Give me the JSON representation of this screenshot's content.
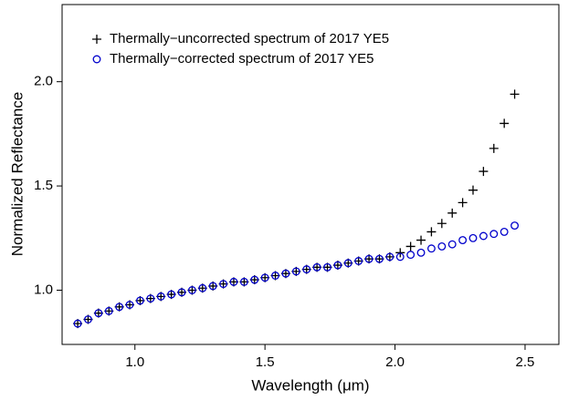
{
  "chart_data": {
    "type": "scatter",
    "xlabel": "Wavelength (μm)",
    "ylabel": "Normalized Reflectance",
    "xlim": [
      0.72,
      2.63
    ],
    "ylim": [
      0.74,
      2.37
    ],
    "xticks": [
      {
        "value": 1,
        "label": "1.0"
      },
      1.5,
      {
        "value": 2,
        "label": "2.0"
      },
      2.5
    ],
    "yticks": [
      {
        "value": 1,
        "label": "1.0"
      },
      1.5,
      {
        "value": 2,
        "label": "2.0"
      }
    ],
    "legend": "upper left",
    "x": [
      0.78,
      0.82,
      0.86,
      0.9,
      0.94,
      0.98,
      1.02,
      1.06,
      1.1,
      1.14,
      1.18,
      1.22,
      1.26,
      1.3,
      1.34,
      1.38,
      1.42,
      1.46,
      1.5,
      1.54,
      1.58,
      1.62,
      1.66,
      1.7,
      1.74,
      1.78,
      1.82,
      1.86,
      1.9,
      1.94,
      1.98,
      2.02,
      2.06,
      2.1,
      2.14,
      2.18,
      2.22,
      2.26,
      2.3,
      2.34,
      2.38,
      2.42,
      2.46
    ],
    "series": [
      {
        "name": "Thermally−uncorrected spectrum of 2017 YE5",
        "color": "#000000",
        "marker": "plus",
        "values": [
          0.84,
          0.86,
          0.89,
          0.9,
          0.92,
          0.93,
          0.95,
          0.96,
          0.97,
          0.98,
          0.99,
          1.0,
          1.01,
          1.02,
          1.03,
          1.04,
          1.04,
          1.05,
          1.06,
          1.07,
          1.08,
          1.09,
          1.1,
          1.11,
          1.11,
          1.12,
          1.13,
          1.14,
          1.15,
          1.15,
          1.16,
          1.18,
          1.21,
          1.24,
          1.28,
          1.32,
          1.37,
          1.42,
          1.48,
          1.57,
          1.68,
          1.8,
          1.94
        ]
      },
      {
        "name": "Thermally−corrected spectrum of 2017 YE5",
        "color": "#0000cc",
        "marker": "circle",
        "values": [
          0.84,
          0.86,
          0.89,
          0.9,
          0.92,
          0.93,
          0.95,
          0.96,
          0.97,
          0.98,
          0.99,
          1.0,
          1.01,
          1.02,
          1.03,
          1.04,
          1.04,
          1.05,
          1.06,
          1.07,
          1.08,
          1.09,
          1.1,
          1.11,
          1.11,
          1.12,
          1.13,
          1.14,
          1.15,
          1.15,
          1.16,
          1.16,
          1.17,
          1.18,
          1.2,
          1.21,
          1.22,
          1.24,
          1.25,
          1.26,
          1.27,
          1.28,
          1.31
        ]
      }
    ]
  }
}
